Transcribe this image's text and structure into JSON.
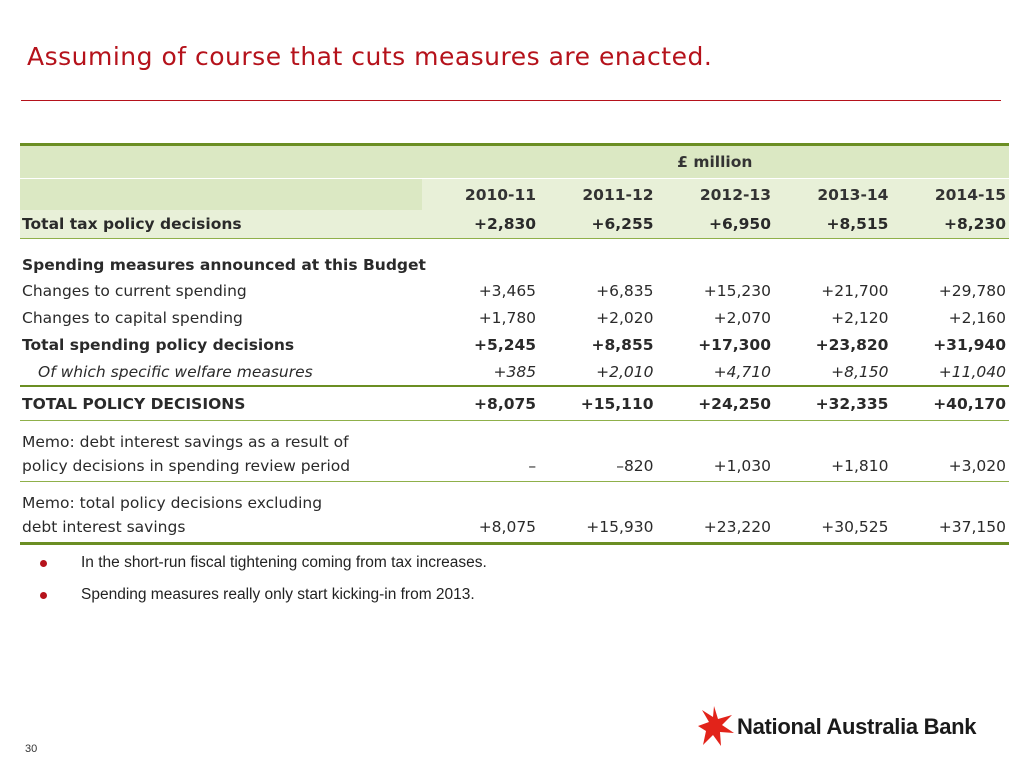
{
  "slide": {
    "title": "Assuming of course that cuts measures are enacted.",
    "page_number": "30"
  },
  "table": {
    "unit_header": "£ million",
    "years": [
      "2010-11",
      "2011-12",
      "2012-13",
      "2013-14",
      "2014-15"
    ],
    "rows": [
      {
        "label": "Total tax policy decisions",
        "values": [
          "+2,830",
          "+6,255",
          "+6,950",
          "+8,515",
          "+8,230"
        ]
      },
      {
        "label": "Spending measures announced at this Budget",
        "values": [
          "",
          "",
          "",
          "",
          ""
        ]
      },
      {
        "label": "Changes to current spending",
        "values": [
          "+3,465",
          "+6,835",
          "+15,230",
          "+21,700",
          "+29,780"
        ]
      },
      {
        "label": "Changes to capital spending",
        "values": [
          "+1,780",
          "+2,020",
          "+2,070",
          "+2,120",
          "+2,160"
        ]
      },
      {
        "label": "Total spending policy decisions",
        "values": [
          "+5,245",
          "+8,855",
          "+17,300",
          "+23,820",
          "+31,940"
        ]
      },
      {
        "label": "Of which specific welfare measures",
        "values": [
          "+385",
          "+2,010",
          "+4,710",
          "+8,150",
          "+11,040"
        ]
      },
      {
        "label": "TOTAL POLICY DECISIONS",
        "values": [
          "+8,075",
          "+15,110",
          "+24,250",
          "+32,335",
          "+40,170"
        ]
      },
      {
        "label": "Memo: debt interest savings as a result of",
        "values": [
          "",
          "",
          "",
          "",
          ""
        ]
      },
      {
        "label": "policy decisions in spending review period",
        "values": [
          "–",
          "–820",
          "+1,030",
          "+1,810",
          "+3,020"
        ]
      },
      {
        "label": "Memo: total policy decisions excluding",
        "values": [
          "",
          "",
          "",
          "",
          ""
        ]
      },
      {
        "label": "debt interest savings",
        "values": [
          "+8,075",
          "+15,930",
          "+23,220",
          "+30,525",
          "+37,150"
        ]
      }
    ]
  },
  "bullets": [
    "In the short-run fiscal tightening coming from tax increases.",
    "Spending measures really only start kicking-in from 2013."
  ],
  "logo": {
    "text": "National Australia Bank",
    "icon": "star-icon",
    "color": "#e2231a"
  },
  "colors": {
    "title": "#b5121b",
    "table_header_bg": "#dbe8c3",
    "table_rule": "#6b8e23"
  }
}
